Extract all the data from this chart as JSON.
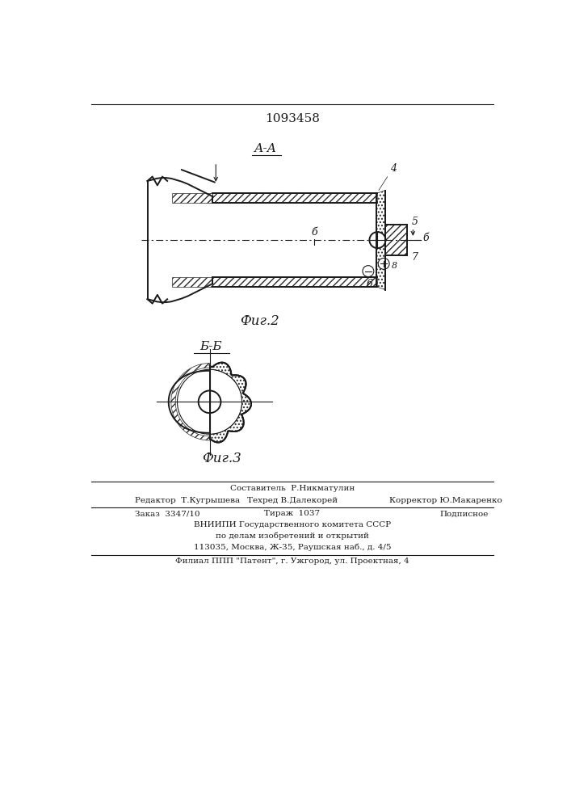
{
  "patent_number": "1093458",
  "fig2_label": "Фиг.2",
  "fig3_label": "Фиг.3",
  "section_aa": "А-А",
  "section_bb": "Б-Б",
  "footer_composer": "Составитель  Р.Никматулин",
  "footer_editor": "Редактор  Т.Кугрышева",
  "footer_techred": "Техред В.Далекорей",
  "footer_corrector": "Корректор Ю.Макаренко",
  "footer_order": "Заказ  3347/10",
  "footer_tirazh": "Тираж  1037",
  "footer_podp": "Подписное",
  "footer_vniipи": "ВНИИПИ Государственного комитета СССР",
  "footer_po": "по делам изобретений и открытий",
  "footer_addr": "113035, Москва, Ж-35, Раушская наб., д. 4/5",
  "footer_filial": "Филиал ППП \"Патент\", г. Ужгород, ул. Проектная, 4",
  "bg_color": "#ffffff",
  "line_color": "#1a1a1a",
  "hatch_color": "#2a2a2a"
}
